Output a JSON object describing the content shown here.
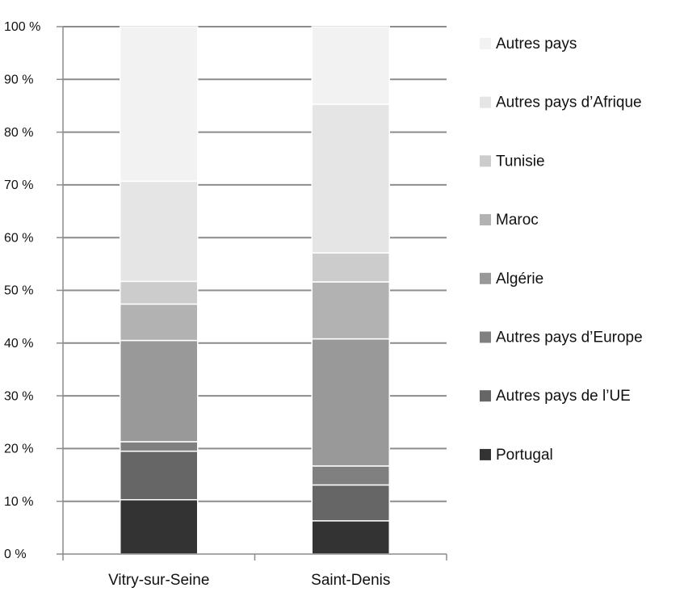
{
  "chart_data": {
    "type": "bar",
    "stacked": true,
    "categories": [
      "Vitry-sur-Seine",
      "Saint-Denis"
    ],
    "y_ticks": [
      "0 %",
      "10 %",
      "20 %",
      "30 %",
      "40 %",
      "50 %",
      "60 %",
      "70 %",
      "80 %",
      "90 %",
      "100 %"
    ],
    "ylim": [
      0,
      100
    ],
    "grid": true,
    "legend_position": "right",
    "series": [
      {
        "name": "Portugal",
        "color": "#333333",
        "values": [
          10.3,
          6.3
        ]
      },
      {
        "name": "Autres pays de l’UE",
        "color": "#666666",
        "values": [
          9.2,
          6.8
        ]
      },
      {
        "name": "Autres pays d’Europe",
        "color": "#808080",
        "values": [
          1.8,
          3.6
        ]
      },
      {
        "name": "Algérie",
        "color": "#999999",
        "values": [
          19.2,
          24.1
        ]
      },
      {
        "name": "Maroc",
        "color": "#b2b2b2",
        "values": [
          6.9,
          10.8
        ]
      },
      {
        "name": "Tunisie",
        "color": "#cccccc",
        "values": [
          4.3,
          5.5
        ]
      },
      {
        "name": "Autres pays d’Afrique",
        "color": "#e5e5e5",
        "values": [
          19.0,
          28.2
        ]
      },
      {
        "name": "Autres pays",
        "color": "#f2f2f2",
        "values": [
          29.3,
          14.7
        ]
      }
    ]
  }
}
